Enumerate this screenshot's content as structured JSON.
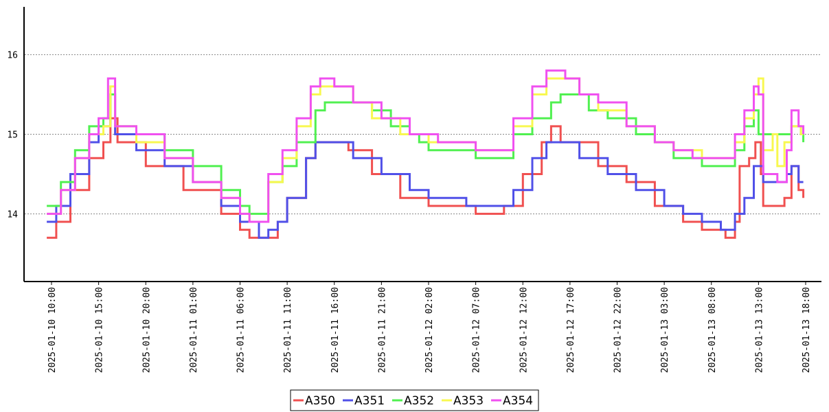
{
  "chart_data": {
    "type": "line",
    "title": "",
    "xlabel": "",
    "ylabel": "",
    "ylim": [
      13.15,
      16.6
    ],
    "y_ticks": [
      14,
      15,
      16
    ],
    "grid": "horizontal-dotted",
    "legend_position": "bottom-center",
    "x_start": "2025-01-10 09:30",
    "x_end": "2025-01-13 18:00",
    "x_ticks": [
      "2025-01-10 10:00",
      "2025-01-10 15:00",
      "2025-01-10 20:00",
      "2025-01-11 01:00",
      "2025-01-11 06:00",
      "2025-01-11 11:00",
      "2025-01-11 16:00",
      "2025-01-11 21:00",
      "2025-01-12 02:00",
      "2025-01-12 07:00",
      "2025-01-12 12:00",
      "2025-01-12 17:00",
      "2025-01-12 22:00",
      "2025-01-13 03:00",
      "2025-01-13 08:00",
      "2025-01-13 13:00",
      "2025-01-13 18:00"
    ],
    "series": [
      {
        "name": "A350",
        "color": "#f05050",
        "points": [
          [
            "2025-01-10 09:30",
            13.7
          ],
          [
            "2025-01-10 10:30",
            13.9
          ],
          [
            "2025-01-10 12:00",
            14.3
          ],
          [
            "2025-01-10 14:00",
            14.7
          ],
          [
            "2025-01-10 15:30",
            14.9
          ],
          [
            "2025-01-10 16:15",
            15.2
          ],
          [
            "2025-01-10 17:00",
            14.9
          ],
          [
            "2025-01-10 20:00",
            14.6
          ],
          [
            "2025-01-11 00:00",
            14.3
          ],
          [
            "2025-01-11 04:00",
            14.0
          ],
          [
            "2025-01-11 06:00",
            13.8
          ],
          [
            "2025-01-11 07:00",
            13.7
          ],
          [
            "2025-01-11 09:00",
            13.7
          ],
          [
            "2025-01-11 10:00",
            13.9
          ],
          [
            "2025-01-11 11:00",
            14.2
          ],
          [
            "2025-01-11 13:00",
            14.7
          ],
          [
            "2025-01-11 14:00",
            14.9
          ],
          [
            "2025-01-11 16:00",
            14.9
          ],
          [
            "2025-01-11 17:30",
            14.8
          ],
          [
            "2025-01-11 20:00",
            14.5
          ],
          [
            "2025-01-11 23:00",
            14.2
          ],
          [
            "2025-01-12 02:00",
            14.1
          ],
          [
            "2025-01-12 06:00",
            14.1
          ],
          [
            "2025-01-12 07:00",
            14.0
          ],
          [
            "2025-01-12 09:00",
            14.0
          ],
          [
            "2025-01-12 10:00",
            14.1
          ],
          [
            "2025-01-12 12:00",
            14.5
          ],
          [
            "2025-01-12 14:00",
            14.9
          ],
          [
            "2025-01-12 15:00",
            15.1
          ],
          [
            "2025-01-12 16:00",
            14.9
          ],
          [
            "2025-01-12 17:30",
            14.9
          ],
          [
            "2025-01-12 20:00",
            14.6
          ],
          [
            "2025-01-12 23:00",
            14.4
          ],
          [
            "2025-01-13 02:00",
            14.1
          ],
          [
            "2025-01-13 05:00",
            13.9
          ],
          [
            "2025-01-13 07:00",
            13.8
          ],
          [
            "2025-01-13 09:30",
            13.7
          ],
          [
            "2025-01-13 10:30",
            13.9
          ],
          [
            "2025-01-13 11:00",
            14.6
          ],
          [
            "2025-01-13 12:00",
            14.7
          ],
          [
            "2025-01-13 12:40",
            14.9
          ],
          [
            "2025-01-13 13:15",
            14.5
          ],
          [
            "2025-01-13 13:30",
            14.1
          ],
          [
            "2025-01-13 15:45",
            14.2
          ],
          [
            "2025-01-13 16:30",
            14.6
          ],
          [
            "2025-01-13 17:15",
            14.3
          ],
          [
            "2025-01-13 17:45",
            14.2
          ]
        ]
      },
      {
        "name": "A351",
        "color": "#5050e8",
        "points": [
          [
            "2025-01-10 09:30",
            13.9
          ],
          [
            "2025-01-10 10:30",
            14.1
          ],
          [
            "2025-01-10 12:00",
            14.5
          ],
          [
            "2025-01-10 14:00",
            14.9
          ],
          [
            "2025-01-10 15:00",
            15.1
          ],
          [
            "2025-01-10 16:15",
            15.5
          ],
          [
            "2025-01-10 16:45",
            15.0
          ],
          [
            "2025-01-10 19:00",
            14.8
          ],
          [
            "2025-01-10 22:00",
            14.6
          ],
          [
            "2025-01-11 01:00",
            14.4
          ],
          [
            "2025-01-11 04:00",
            14.1
          ],
          [
            "2025-01-11 06:00",
            13.9
          ],
          [
            "2025-01-11 08:00",
            13.7
          ],
          [
            "2025-01-11 09:00",
            13.8
          ],
          [
            "2025-01-11 10:00",
            13.9
          ],
          [
            "2025-01-11 11:00",
            14.2
          ],
          [
            "2025-01-11 13:00",
            14.7
          ],
          [
            "2025-01-11 14:00",
            14.9
          ],
          [
            "2025-01-11 17:00",
            14.9
          ],
          [
            "2025-01-11 18:00",
            14.7
          ],
          [
            "2025-01-11 21:00",
            14.5
          ],
          [
            "2025-01-12 00:00",
            14.3
          ],
          [
            "2025-01-12 02:00",
            14.2
          ],
          [
            "2025-01-12 05:00",
            14.2
          ],
          [
            "2025-01-12 06:00",
            14.1
          ],
          [
            "2025-01-12 09:00",
            14.1
          ],
          [
            "2025-01-12 11:00",
            14.3
          ],
          [
            "2025-01-12 13:00",
            14.7
          ],
          [
            "2025-01-12 14:30",
            14.9
          ],
          [
            "2025-01-12 17:00",
            14.9
          ],
          [
            "2025-01-12 18:00",
            14.7
          ],
          [
            "2025-01-12 21:00",
            14.5
          ],
          [
            "2025-01-13 00:00",
            14.3
          ],
          [
            "2025-01-13 03:00",
            14.1
          ],
          [
            "2025-01-13 05:00",
            14.0
          ],
          [
            "2025-01-13 07:00",
            13.9
          ],
          [
            "2025-01-13 09:00",
            13.8
          ],
          [
            "2025-01-13 10:30",
            14.0
          ],
          [
            "2025-01-13 11:30",
            14.2
          ],
          [
            "2025-01-13 12:30",
            14.6
          ],
          [
            "2025-01-13 13:30",
            14.4
          ],
          [
            "2025-01-13 16:00",
            14.5
          ],
          [
            "2025-01-13 16:30",
            14.6
          ],
          [
            "2025-01-13 17:15",
            14.4
          ],
          [
            "2025-01-13 17:45",
            14.4
          ]
        ]
      },
      {
        "name": "A352",
        "color": "#50f050",
        "points": [
          [
            "2025-01-10 09:30",
            14.1
          ],
          [
            "2025-01-10 11:00",
            14.4
          ],
          [
            "2025-01-10 12:30",
            14.8
          ],
          [
            "2025-01-10 14:00",
            15.1
          ],
          [
            "2025-01-10 15:30",
            15.2
          ],
          [
            "2025-01-10 16:15",
            15.5
          ],
          [
            "2025-01-10 16:45",
            15.1
          ],
          [
            "2025-01-10 19:00",
            15.0
          ],
          [
            "2025-01-10 22:00",
            14.8
          ],
          [
            "2025-01-11 01:00",
            14.6
          ],
          [
            "2025-01-11 04:00",
            14.3
          ],
          [
            "2025-01-11 06:00",
            14.1
          ],
          [
            "2025-01-11 07:00",
            14.0
          ],
          [
            "2025-01-11 08:15",
            14.0
          ],
          [
            "2025-01-11 09:00",
            14.4
          ],
          [
            "2025-01-11 10:30",
            14.6
          ],
          [
            "2025-01-11 12:00",
            14.9
          ],
          [
            "2025-01-11 14:00",
            15.3
          ],
          [
            "2025-01-11 15:00",
            15.4
          ],
          [
            "2025-01-11 19:00",
            15.4
          ],
          [
            "2025-01-11 20:00",
            15.3
          ],
          [
            "2025-01-11 22:00",
            15.1
          ],
          [
            "2025-01-12 00:00",
            15.0
          ],
          [
            "2025-01-12 01:00",
            14.9
          ],
          [
            "2025-01-12 02:00",
            14.8
          ],
          [
            "2025-01-12 06:00",
            14.8
          ],
          [
            "2025-01-12 07:00",
            14.7
          ],
          [
            "2025-01-12 09:00",
            14.7
          ],
          [
            "2025-01-12 11:00",
            15.0
          ],
          [
            "2025-01-12 13:00",
            15.2
          ],
          [
            "2025-01-12 15:00",
            15.4
          ],
          [
            "2025-01-12 16:00",
            15.5
          ],
          [
            "2025-01-12 18:00",
            15.5
          ],
          [
            "2025-01-12 19:00",
            15.3
          ],
          [
            "2025-01-12 21:00",
            15.2
          ],
          [
            "2025-01-13 00:00",
            15.0
          ],
          [
            "2025-01-13 02:00",
            14.9
          ],
          [
            "2025-01-13 04:00",
            14.7
          ],
          [
            "2025-01-13 07:00",
            14.6
          ],
          [
            "2025-01-13 09:00",
            14.6
          ],
          [
            "2025-01-13 10:30",
            14.8
          ],
          [
            "2025-01-13 11:30",
            15.1
          ],
          [
            "2025-01-13 12:30",
            15.3
          ],
          [
            "2025-01-13 13:00",
            15.0
          ],
          [
            "2025-01-13 16:00",
            15.0
          ],
          [
            "2025-01-13 16:30",
            15.1
          ],
          [
            "2025-01-13 17:30",
            15.0
          ],
          [
            "2025-01-13 17:45",
            14.9
          ]
        ]
      },
      {
        "name": "A353",
        "color": "#f8f850",
        "points": [
          [
            "2025-01-10 09:30",
            14.0
          ],
          [
            "2025-01-10 11:00",
            14.3
          ],
          [
            "2025-01-10 12:30",
            14.7
          ],
          [
            "2025-01-10 14:00",
            15.0
          ],
          [
            "2025-01-10 15:30",
            15.1
          ],
          [
            "2025-01-10 16:15",
            15.6
          ],
          [
            "2025-01-10 16:45",
            15.1
          ],
          [
            "2025-01-10 19:00",
            14.9
          ],
          [
            "2025-01-10 22:00",
            14.7
          ],
          [
            "2025-01-11 01:00",
            14.4
          ],
          [
            "2025-01-11 04:00",
            14.2
          ],
          [
            "2025-01-11 06:00",
            14.0
          ],
          [
            "2025-01-11 07:00",
            13.9
          ],
          [
            "2025-01-11 08:15",
            13.9
          ],
          [
            "2025-01-11 09:00",
            14.4
          ],
          [
            "2025-01-11 10:30",
            14.7
          ],
          [
            "2025-01-11 12:00",
            15.1
          ],
          [
            "2025-01-11 13:30",
            15.5
          ],
          [
            "2025-01-11 14:30",
            15.6
          ],
          [
            "2025-01-11 17:00",
            15.6
          ],
          [
            "2025-01-11 18:00",
            15.4
          ],
          [
            "2025-01-11 20:00",
            15.2
          ],
          [
            "2025-01-11 23:00",
            15.0
          ],
          [
            "2025-01-12 02:00",
            14.9
          ],
          [
            "2025-01-12 07:00",
            14.8
          ],
          [
            "2025-01-12 09:00",
            14.8
          ],
          [
            "2025-01-12 11:00",
            15.1
          ],
          [
            "2025-01-12 13:00",
            15.5
          ],
          [
            "2025-01-12 14:30",
            15.7
          ],
          [
            "2025-01-12 17:00",
            15.7
          ],
          [
            "2025-01-12 18:00",
            15.5
          ],
          [
            "2025-01-12 20:00",
            15.3
          ],
          [
            "2025-01-12 23:00",
            15.1
          ],
          [
            "2025-01-13 02:00",
            14.9
          ],
          [
            "2025-01-13 04:00",
            14.8
          ],
          [
            "2025-01-13 07:00",
            14.7
          ],
          [
            "2025-01-13 09:00",
            14.7
          ],
          [
            "2025-01-13 10:30",
            14.9
          ],
          [
            "2025-01-13 11:30",
            15.2
          ],
          [
            "2025-01-13 12:30",
            15.5
          ],
          [
            "2025-01-13 13:00",
            15.7
          ],
          [
            "2025-01-13 13:30",
            14.8
          ],
          [
            "2025-01-13 14:30",
            15.0
          ],
          [
            "2025-01-13 15:00",
            14.6
          ],
          [
            "2025-01-13 15:45",
            14.9
          ],
          [
            "2025-01-13 16:30",
            15.1
          ],
          [
            "2025-01-13 17:30",
            15.0
          ],
          [
            "2025-01-13 17:45",
            15.0
          ]
        ]
      },
      {
        "name": "A354",
        "color": "#f050f0",
        "points": [
          [
            "2025-01-10 09:30",
            14.0
          ],
          [
            "2025-01-10 11:00",
            14.3
          ],
          [
            "2025-01-10 12:30",
            14.7
          ],
          [
            "2025-01-10 14:00",
            15.0
          ],
          [
            "2025-01-10 15:00",
            15.2
          ],
          [
            "2025-01-10 16:00",
            15.7
          ],
          [
            "2025-01-10 16:45",
            15.1
          ],
          [
            "2025-01-10 19:00",
            15.0
          ],
          [
            "2025-01-10 22:00",
            14.7
          ],
          [
            "2025-01-11 01:00",
            14.4
          ],
          [
            "2025-01-11 04:00",
            14.2
          ],
          [
            "2025-01-11 06:00",
            14.0
          ],
          [
            "2025-01-11 07:00",
            13.9
          ],
          [
            "2025-01-11 08:15",
            13.9
          ],
          [
            "2025-01-11 09:00",
            14.5
          ],
          [
            "2025-01-11 10:30",
            14.8
          ],
          [
            "2025-01-11 12:00",
            15.2
          ],
          [
            "2025-01-11 13:30",
            15.6
          ],
          [
            "2025-01-11 14:30",
            15.7
          ],
          [
            "2025-01-11 16:00",
            15.6
          ],
          [
            "2025-01-11 18:00",
            15.4
          ],
          [
            "2025-01-11 21:00",
            15.2
          ],
          [
            "2025-01-12 00:00",
            15.0
          ],
          [
            "2025-01-12 03:00",
            14.9
          ],
          [
            "2025-01-12 07:00",
            14.8
          ],
          [
            "2025-01-12 09:00",
            14.8
          ],
          [
            "2025-01-12 11:00",
            15.2
          ],
          [
            "2025-01-12 13:00",
            15.6
          ],
          [
            "2025-01-12 14:30",
            15.8
          ],
          [
            "2025-01-12 16:30",
            15.7
          ],
          [
            "2025-01-12 18:00",
            15.5
          ],
          [
            "2025-01-12 20:00",
            15.4
          ],
          [
            "2025-01-12 23:00",
            15.1
          ],
          [
            "2025-01-13 02:00",
            14.9
          ],
          [
            "2025-01-13 04:00",
            14.8
          ],
          [
            "2025-01-13 06:00",
            14.7
          ],
          [
            "2025-01-13 09:00",
            14.7
          ],
          [
            "2025-01-13 10:30",
            15.0
          ],
          [
            "2025-01-13 11:30",
            15.3
          ],
          [
            "2025-01-13 12:30",
            15.6
          ],
          [
            "2025-01-13 13:00",
            15.5
          ],
          [
            "2025-01-13 13:30",
            14.5
          ],
          [
            "2025-01-13 15:00",
            14.4
          ],
          [
            "2025-01-13 16:00",
            14.8
          ],
          [
            "2025-01-13 16:30",
            15.3
          ],
          [
            "2025-01-13 17:15",
            15.1
          ],
          [
            "2025-01-13 17:45",
            15.0
          ]
        ]
      }
    ]
  }
}
